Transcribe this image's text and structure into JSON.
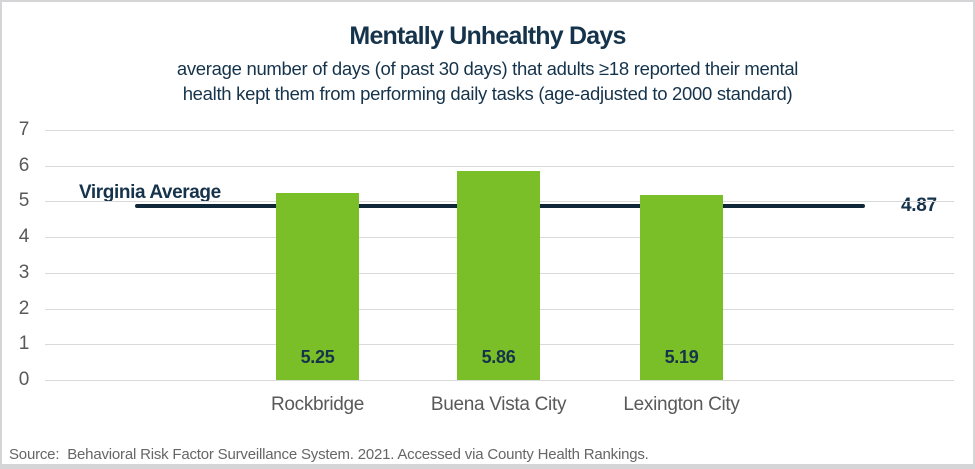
{
  "chart": {
    "title": "Mentally Unhealthy Days",
    "subtitle_line1": "average number of days (of past 30 days) that adults ≥18 reported their mental",
    "subtitle_line2": "health kept them from performing daily tasks (age-adjusted to 2000 standard)",
    "source": "Source:  Behavioral Risk Factor Surveillance System. 2021. Accessed via County Health Rankings."
  },
  "chart_data": {
    "type": "bar",
    "categories": [
      "Rockbridge",
      "Buena Vista City",
      "Lexington City"
    ],
    "values": [
      5.25,
      5.86,
      5.19
    ],
    "value_labels": [
      "5.25",
      "5.86",
      "5.19"
    ],
    "reference_line": {
      "label": "Virginia Average",
      "value": 4.87,
      "value_label": "4.87"
    },
    "y_ticks": [
      0,
      1,
      2,
      3,
      4,
      5,
      6,
      7
    ],
    "ylim": [
      0,
      7
    ],
    "grid": true,
    "legend_position": "none",
    "bar_color": "#7abf28",
    "navy_text_color": "#15334b",
    "reference_line_color": "#0f2839",
    "axis_text_color": "#595959",
    "gridline_color": "#d9d9d9"
  }
}
